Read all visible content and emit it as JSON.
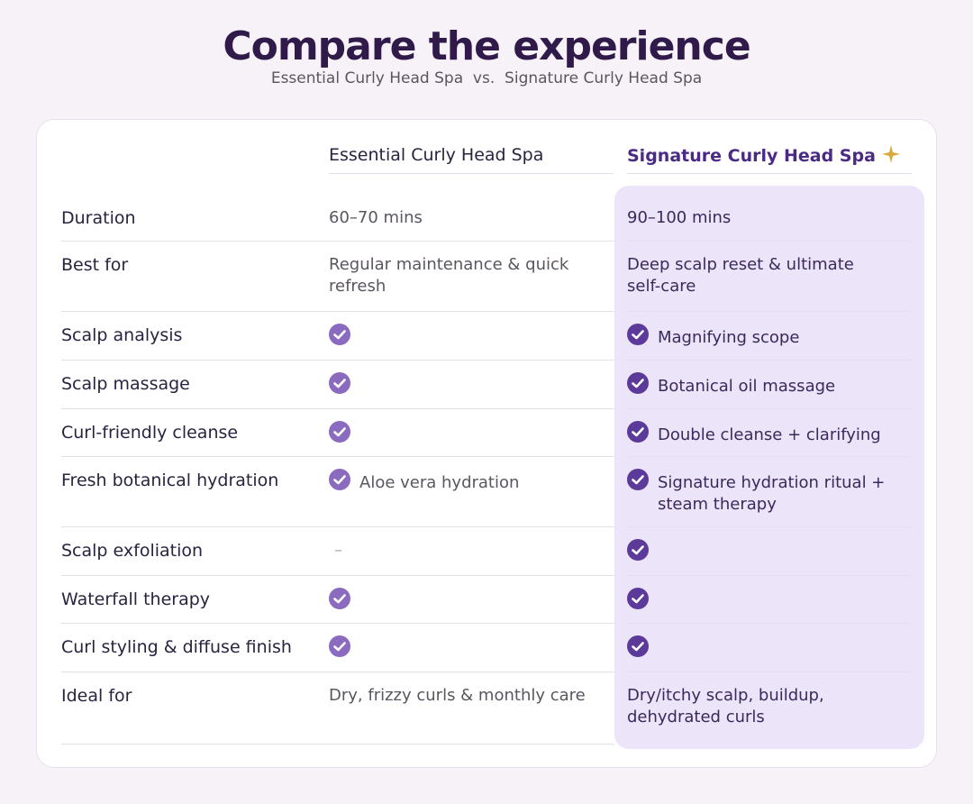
{
  "header": {
    "title": "Compare the experience",
    "subtitle": "Essential Curly Head Spa  vs.  Signature Curly Head Spa"
  },
  "table": {
    "columns": [
      "Essential Curly Head Spa",
      "Signature Curly Head Spa"
    ],
    "rows": [
      {
        "label": "Duration",
        "essential": {
          "text": "60–70 mins"
        },
        "signature": {
          "text": "90–100 mins"
        }
      },
      {
        "label": "Best for",
        "essential": {
          "text": "Regular maintenance & quick refresh"
        },
        "signature": {
          "text": "Deep scalp reset & ultimate self-care"
        }
      },
      {
        "label": "Scalp analysis",
        "essential": {
          "check": true
        },
        "signature": {
          "check": true,
          "text": "Magnifying scope"
        }
      },
      {
        "label": "Scalp massage",
        "essential": {
          "check": true
        },
        "signature": {
          "check": true,
          "text": "Botanical oil massage"
        }
      },
      {
        "label": "Curl-friendly cleanse",
        "essential": {
          "check": true
        },
        "signature": {
          "check": true,
          "text": "Double cleanse + clarifying"
        }
      },
      {
        "label": "Fresh botanical hydration",
        "essential": {
          "check": true,
          "text": "Aloe vera hydration"
        },
        "signature": {
          "check": true,
          "text": "Signature hydration ritual + steam therapy"
        }
      },
      {
        "label": "Scalp exfoliation",
        "essential": {
          "text": "–"
        },
        "signature": {
          "check": true
        }
      },
      {
        "label": "Waterfall therapy",
        "essential": {
          "check": true
        },
        "signature": {
          "check": true
        }
      },
      {
        "label": "Curl styling & diffuse finish",
        "essential": {
          "check": true
        },
        "signature": {
          "check": true
        }
      },
      {
        "label": "Ideal for",
        "essential": {
          "text": "Dry, frizzy curls & monthly care"
        },
        "signature": {
          "text": "Dry/itchy scalp, buildup, dehydrated curls"
        }
      }
    ]
  }
}
